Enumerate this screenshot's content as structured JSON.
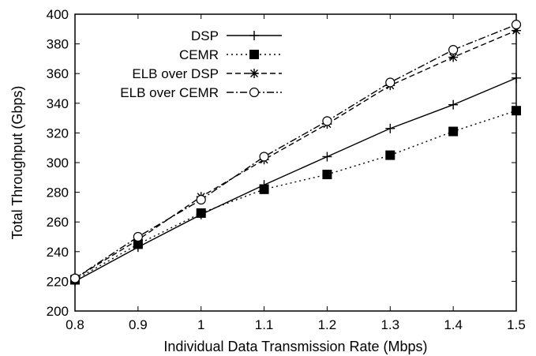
{
  "chart_data": {
    "type": "line",
    "title": "",
    "xlabel": "Individual Data Transmission Rate (Mbps)",
    "ylabel": "Total Throughput (Gbps)",
    "xlim": [
      0.8,
      1.5
    ],
    "ylim": [
      200,
      400
    ],
    "x_ticks": [
      "0.8",
      "0.9",
      "1",
      "1.1",
      "1.2",
      "1.3",
      "1.4",
      "1.5"
    ],
    "y_ticks": [
      "200",
      "220",
      "240",
      "260",
      "280",
      "300",
      "320",
      "340",
      "360",
      "380",
      "400"
    ],
    "grid": false,
    "legend_position": "top-left",
    "x": [
      0.8,
      0.9,
      1.0,
      1.1,
      1.2,
      1.3,
      1.4,
      1.5
    ],
    "series": [
      {
        "name": "DSP",
        "marker": "plus",
        "line_style": "solid",
        "values": [
          220,
          243,
          265,
          285,
          304,
          323,
          339,
          357
        ]
      },
      {
        "name": "CEMR",
        "marker": "filled-square",
        "line_style": "dotted",
        "values": [
          221,
          245,
          266,
          282,
          292,
          305,
          321,
          335
        ]
      },
      {
        "name": "ELB over DSP",
        "marker": "asterisk",
        "line_style": "dashed",
        "values": [
          222,
          248,
          277,
          302,
          326,
          352,
          371,
          389
        ]
      },
      {
        "name": "ELB over CEMR",
        "marker": "open-circle",
        "line_style": "dash-dot",
        "values": [
          222,
          250,
          275,
          304,
          328,
          354,
          376,
          393
        ]
      }
    ]
  }
}
